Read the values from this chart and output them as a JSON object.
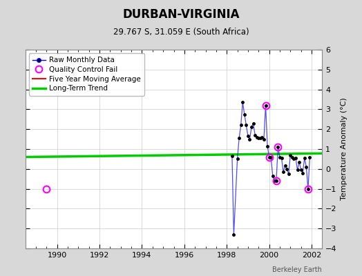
{
  "title": "DURBAN-VIRGINIA",
  "subtitle": "29.767 S, 31.059 E (South Africa)",
  "ylabel": "Temperature Anomaly (°C)",
  "attribution": "Berkeley Earth",
  "ylim": [
    -4,
    6
  ],
  "yticks": [
    -4,
    -3,
    -2,
    -1,
    0,
    1,
    2,
    3,
    4,
    5,
    6
  ],
  "xlim": [
    1988.5,
    2002.5
  ],
  "xticks": [
    1990,
    1992,
    1994,
    1996,
    1998,
    2000,
    2002
  ],
  "bg_color": "#d8d8d8",
  "plot_bg_color": "#ffffff",
  "raw_data_x": [
    1998.25,
    1998.33,
    1998.5,
    1998.583,
    1998.667,
    1998.75,
    1998.833,
    1998.917,
    1999.0,
    1999.083,
    1999.167,
    1999.25,
    1999.333,
    1999.417,
    1999.5,
    1999.583,
    1999.667,
    1999.75,
    1999.833,
    1999.917,
    2000.0,
    2000.083,
    2000.167,
    2000.25,
    2000.333,
    2000.417,
    2000.5,
    2000.583,
    2000.667,
    2000.75,
    2000.833,
    2000.917,
    2001.0,
    2001.083,
    2001.167,
    2001.25,
    2001.333,
    2001.417,
    2001.5,
    2001.583,
    2001.667,
    2001.75,
    2001.833,
    2001.917
  ],
  "raw_data_y": [
    0.65,
    -3.3,
    0.5,
    1.55,
    2.2,
    3.35,
    2.75,
    2.2,
    1.65,
    1.5,
    2.1,
    2.3,
    1.7,
    1.6,
    1.55,
    1.55,
    1.6,
    1.5,
    3.2,
    1.15,
    0.6,
    0.6,
    -0.35,
    -0.6,
    -0.6,
    1.1,
    0.6,
    0.55,
    -0.15,
    0.15,
    0.0,
    -0.25,
    0.7,
    0.6,
    0.5,
    0.55,
    -0.05,
    0.35,
    -0.05,
    -0.2,
    0.55,
    0.1,
    -1.0,
    0.6
  ],
  "qc_fail_x": [
    1989.5,
    1999.833,
    2000.0,
    2000.333,
    2000.417,
    2001.833
  ],
  "qc_fail_y": [
    -1.0,
    3.2,
    0.6,
    -0.6,
    1.1,
    -1.0
  ],
  "trend_x": [
    1988.5,
    2002.5
  ],
  "trend_y": [
    0.6,
    0.78
  ],
  "raw_line_color": "#0000ff",
  "raw_marker_color": "#000000",
  "qc_color": "#ff00ff",
  "moving_avg_color": "#ff0000",
  "trend_color": "#00cc00",
  "grid_color": "#cccccc"
}
